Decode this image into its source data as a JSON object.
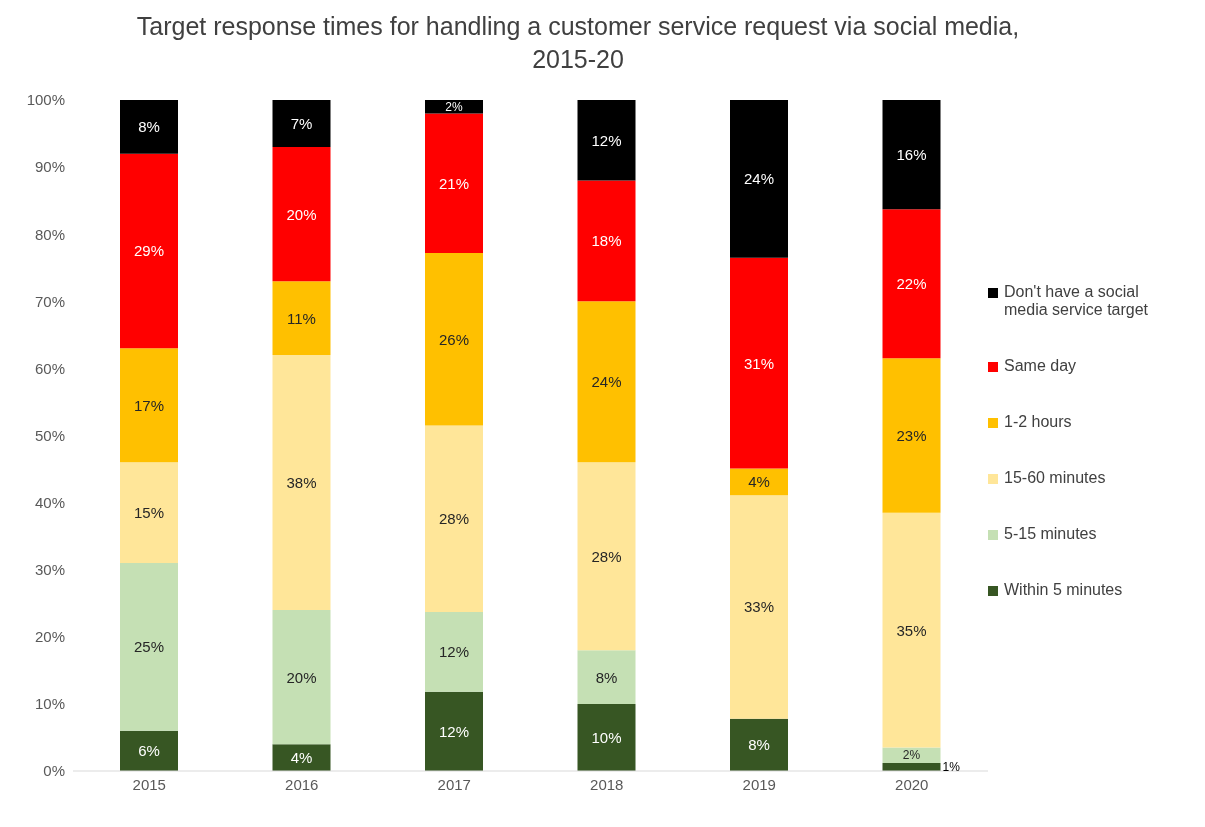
{
  "chart_data": {
    "type": "bar",
    "stacked": true,
    "title": "Target response times for handling a customer service request via social media, 2015-20",
    "categories": [
      "2015",
      "2016",
      "2017",
      "2018",
      "2019",
      "2020"
    ],
    "series": [
      {
        "name": "Within 5 minutes",
        "color": "#375623",
        "values": [
          6,
          4,
          11.8,
          10,
          7.8,
          1.2
        ],
        "value_labels": [
          "6%",
          "4%",
          "12%",
          "10%",
          "8%",
          "1%"
        ]
      },
      {
        "name": "5-15 minutes",
        "color": "#c5e0b4",
        "values": [
          25,
          20,
          11.9,
          8,
          0,
          2.3
        ],
        "value_labels": [
          "25%",
          "20%",
          "12%",
          "8%",
          null,
          "2%"
        ]
      },
      {
        "name": "15-60 minutes",
        "color": "#ffe699",
        "values": [
          15,
          38,
          27.8,
          28,
          33.3,
          35
        ],
        "value_labels": [
          "15%",
          "38%",
          "28%",
          "28%",
          "33%",
          "35%"
        ]
      },
      {
        "name": "1-2 hours",
        "color": "#ffc000",
        "values": [
          17,
          11,
          25.7,
          24,
          4,
          23
        ],
        "value_labels": [
          "17%",
          "11%",
          "26%",
          "24%",
          "4%",
          "23%"
        ]
      },
      {
        "name": "Same day",
        "color": "#ff0000",
        "values": [
          29,
          20,
          20.8,
          18,
          31.4,
          22.2
        ],
        "value_labels": [
          "29%",
          "20%",
          "21%",
          "18%",
          "31%",
          "22%"
        ]
      },
      {
        "name": "Don't have a social media service target",
        "color": "#000000",
        "values": [
          8,
          7,
          2,
          12,
          23.5,
          16.3
        ],
        "value_labels": [
          "8%",
          "7%",
          "2%",
          "12%",
          "24%",
          "16%"
        ]
      }
    ],
    "ylim": [
      0,
      100
    ],
    "yticks": [
      {
        "value": 0,
        "label": "0%"
      },
      {
        "value": 10,
        "label": "10%"
      },
      {
        "value": 20,
        "label": "20%"
      },
      {
        "value": 30,
        "label": "30%"
      },
      {
        "value": 40,
        "label": "40%"
      },
      {
        "value": 50,
        "label": "50%"
      },
      {
        "value": 60,
        "label": "60%"
      },
      {
        "value": 70,
        "label": "70%"
      },
      {
        "value": 80,
        "label": "80%"
      },
      {
        "value": 90,
        "label": "90%"
      },
      {
        "value": 100,
        "label": "100%"
      }
    ],
    "grid": false,
    "legend": "right"
  }
}
